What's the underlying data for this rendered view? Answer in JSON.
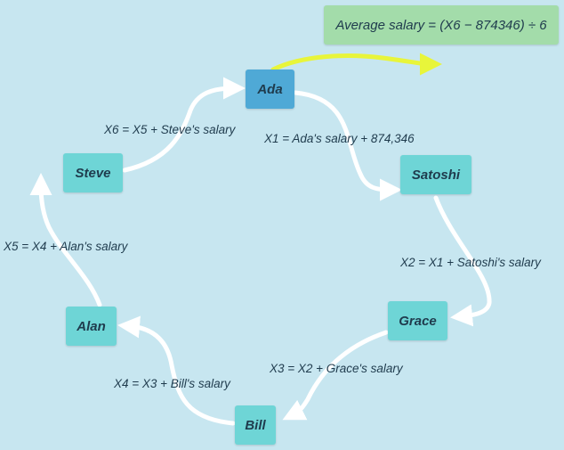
{
  "result": {
    "formula": "Average salary = (X6 − 874346) ÷ 6"
  },
  "nodes": {
    "ada": "Ada",
    "satoshi": "Satoshi",
    "grace": "Grace",
    "bill": "Bill",
    "alan": "Alan",
    "steve": "Steve"
  },
  "edges": {
    "x1": "X1 = Ada's salary + 874,346",
    "x2": "X2 = X1 + Satoshi's salary",
    "x3": "X3 = X2 + Grace's salary",
    "x4": "X4 = X3 + Bill's salary",
    "x5": "X5 = X4 + Alan's salary",
    "x6": "X6 = X5 + Steve's salary"
  },
  "colors": {
    "background": "#c7e6f0",
    "node": "#6ed5d6",
    "start_node": "#4fa9d6",
    "result_box": "#a3dcaa",
    "arrow": "#ffffff",
    "result_arrow": "#e8f53a"
  }
}
